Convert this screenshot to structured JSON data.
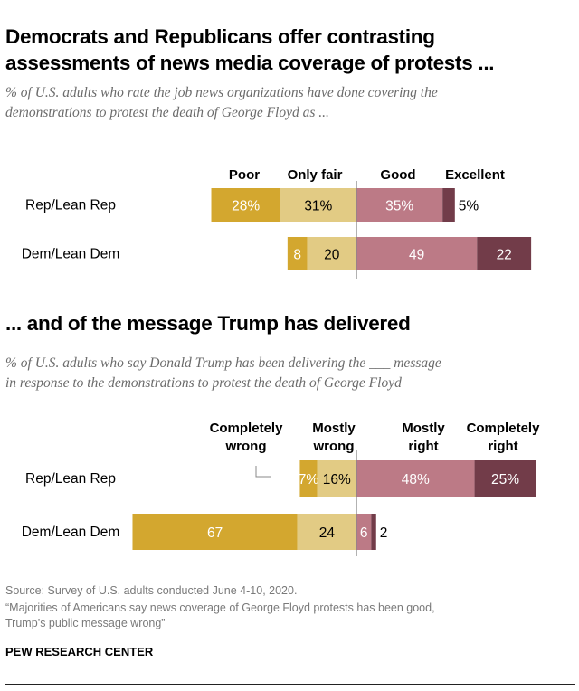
{
  "titles": {
    "t1_line1": "Democrats and Republicans offer contrasting",
    "t1_line2": "assessments of news media coverage of protests ...",
    "s1_line1": "% of U.S. adults who rate the job news organizations have done covering the",
    "s1_line2": "demonstrations to protest the death of George Floyd as ...",
    "t2": "... and of the message Trump has delivered",
    "s2_line1": "% of U.S. adults who say Donald Trump has been delivering the ___ message",
    "s2_line2": "in response to the demonstrations to protest the death of George Floyd"
  },
  "footer": {
    "source": "Source: Survey of U.S. adults conducted June 4-10, 2020.",
    "report_line1": "“Majorities of Americans say news coverage of George Floyd protests has been good,",
    "report_line2": "Trump’s public message wrong”",
    "org": "PEW RESEARCH CENTER"
  },
  "colors": {
    "dark_neg": "#d3a72f",
    "light_neg": "#e2cb84",
    "light_pos": "#bc7a86",
    "dark_pos": "#723c49"
  },
  "chart_data": [
    {
      "type": "bar",
      "stacked": "diverging",
      "title": "Democrats and Republicans offer contrasting assessments of news media coverage of protests ...",
      "categories": [
        "Rep/Lean Rep",
        "Dem/Lean Dem"
      ],
      "series": [
        {
          "name": "Poor",
          "side": "neg",
          "values": [
            28,
            8
          ],
          "labels": [
            "28%",
            "8"
          ]
        },
        {
          "name": "Only fair",
          "side": "neg",
          "values": [
            31,
            20
          ],
          "labels": [
            "31%",
            "20"
          ]
        },
        {
          "name": "Good",
          "side": "pos",
          "values": [
            35,
            49
          ],
          "labels": [
            "35%",
            "49"
          ]
        },
        {
          "name": "Excellent",
          "side": "pos",
          "values": [
            5,
            22
          ],
          "labels": [
            "5%",
            "22"
          ]
        }
      ]
    },
    {
      "type": "bar",
      "stacked": "diverging",
      "title": "... and of the message Trump has delivered",
      "categories": [
        "Rep/Lean Rep",
        "Dem/Lean Dem"
      ],
      "series": [
        {
          "name": "Completely wrong",
          "side": "neg",
          "values": [
            7,
            67
          ],
          "labels": [
            "7%",
            "67"
          ]
        },
        {
          "name": "Mostly wrong",
          "side": "neg",
          "values": [
            16,
            24
          ],
          "labels": [
            "16%",
            "24"
          ]
        },
        {
          "name": "Mostly right",
          "side": "pos",
          "values": [
            48,
            6
          ],
          "labels": [
            "48%",
            "6"
          ]
        },
        {
          "name": "Completely right",
          "side": "pos",
          "values": [
            25,
            2
          ],
          "labels": [
            "25%",
            "2"
          ]
        }
      ]
    }
  ]
}
